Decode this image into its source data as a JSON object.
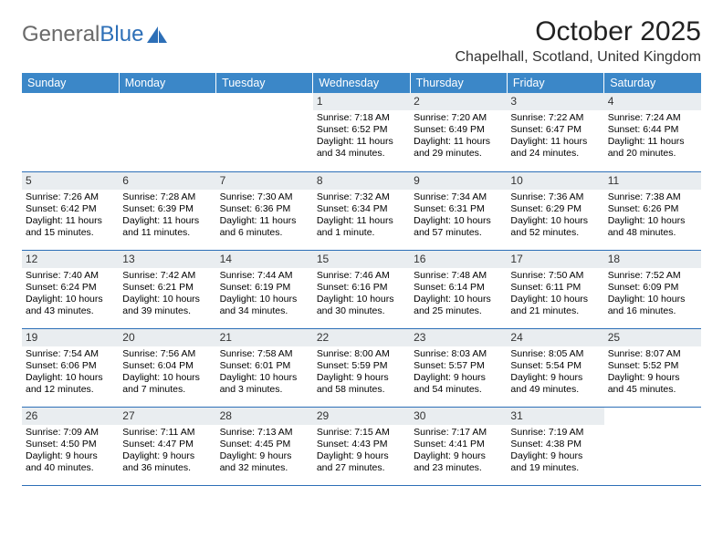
{
  "logo": {
    "part1": "General",
    "part2": "Blue"
  },
  "title": "October 2025",
  "location": "Chapelhall, Scotland, United Kingdom",
  "colors": {
    "header_bg": "#3b87c8",
    "header_text": "#ffffff",
    "daynum_bg": "#e9edf0",
    "rule": "#2d6fb7",
    "logo_gray": "#6a6a6a",
    "logo_blue": "#2d6fb7"
  },
  "typography": {
    "title_fontsize": 30,
    "location_fontsize": 16,
    "dayheader_fontsize": 12.5,
    "cell_fontsize": 10.5
  },
  "day_headers": [
    "Sunday",
    "Monday",
    "Tuesday",
    "Wednesday",
    "Thursday",
    "Friday",
    "Saturday"
  ],
  "weeks": [
    [
      {
        "n": "",
        "sr": "",
        "ss": "",
        "dl": ""
      },
      {
        "n": "",
        "sr": "",
        "ss": "",
        "dl": ""
      },
      {
        "n": "",
        "sr": "",
        "ss": "",
        "dl": ""
      },
      {
        "n": "1",
        "sr": "Sunrise: 7:18 AM",
        "ss": "Sunset: 6:52 PM",
        "dl": "Daylight: 11 hours and 34 minutes."
      },
      {
        "n": "2",
        "sr": "Sunrise: 7:20 AM",
        "ss": "Sunset: 6:49 PM",
        "dl": "Daylight: 11 hours and 29 minutes."
      },
      {
        "n": "3",
        "sr": "Sunrise: 7:22 AM",
        "ss": "Sunset: 6:47 PM",
        "dl": "Daylight: 11 hours and 24 minutes."
      },
      {
        "n": "4",
        "sr": "Sunrise: 7:24 AM",
        "ss": "Sunset: 6:44 PM",
        "dl": "Daylight: 11 hours and 20 minutes."
      }
    ],
    [
      {
        "n": "5",
        "sr": "Sunrise: 7:26 AM",
        "ss": "Sunset: 6:42 PM",
        "dl": "Daylight: 11 hours and 15 minutes."
      },
      {
        "n": "6",
        "sr": "Sunrise: 7:28 AM",
        "ss": "Sunset: 6:39 PM",
        "dl": "Daylight: 11 hours and 11 minutes."
      },
      {
        "n": "7",
        "sr": "Sunrise: 7:30 AM",
        "ss": "Sunset: 6:36 PM",
        "dl": "Daylight: 11 hours and 6 minutes."
      },
      {
        "n": "8",
        "sr": "Sunrise: 7:32 AM",
        "ss": "Sunset: 6:34 PM",
        "dl": "Daylight: 11 hours and 1 minute."
      },
      {
        "n": "9",
        "sr": "Sunrise: 7:34 AM",
        "ss": "Sunset: 6:31 PM",
        "dl": "Daylight: 10 hours and 57 minutes."
      },
      {
        "n": "10",
        "sr": "Sunrise: 7:36 AM",
        "ss": "Sunset: 6:29 PM",
        "dl": "Daylight: 10 hours and 52 minutes."
      },
      {
        "n": "11",
        "sr": "Sunrise: 7:38 AM",
        "ss": "Sunset: 6:26 PM",
        "dl": "Daylight: 10 hours and 48 minutes."
      }
    ],
    [
      {
        "n": "12",
        "sr": "Sunrise: 7:40 AM",
        "ss": "Sunset: 6:24 PM",
        "dl": "Daylight: 10 hours and 43 minutes."
      },
      {
        "n": "13",
        "sr": "Sunrise: 7:42 AM",
        "ss": "Sunset: 6:21 PM",
        "dl": "Daylight: 10 hours and 39 minutes."
      },
      {
        "n": "14",
        "sr": "Sunrise: 7:44 AM",
        "ss": "Sunset: 6:19 PM",
        "dl": "Daylight: 10 hours and 34 minutes."
      },
      {
        "n": "15",
        "sr": "Sunrise: 7:46 AM",
        "ss": "Sunset: 6:16 PM",
        "dl": "Daylight: 10 hours and 30 minutes."
      },
      {
        "n": "16",
        "sr": "Sunrise: 7:48 AM",
        "ss": "Sunset: 6:14 PM",
        "dl": "Daylight: 10 hours and 25 minutes."
      },
      {
        "n": "17",
        "sr": "Sunrise: 7:50 AM",
        "ss": "Sunset: 6:11 PM",
        "dl": "Daylight: 10 hours and 21 minutes."
      },
      {
        "n": "18",
        "sr": "Sunrise: 7:52 AM",
        "ss": "Sunset: 6:09 PM",
        "dl": "Daylight: 10 hours and 16 minutes."
      }
    ],
    [
      {
        "n": "19",
        "sr": "Sunrise: 7:54 AM",
        "ss": "Sunset: 6:06 PM",
        "dl": "Daylight: 10 hours and 12 minutes."
      },
      {
        "n": "20",
        "sr": "Sunrise: 7:56 AM",
        "ss": "Sunset: 6:04 PM",
        "dl": "Daylight: 10 hours and 7 minutes."
      },
      {
        "n": "21",
        "sr": "Sunrise: 7:58 AM",
        "ss": "Sunset: 6:01 PM",
        "dl": "Daylight: 10 hours and 3 minutes."
      },
      {
        "n": "22",
        "sr": "Sunrise: 8:00 AM",
        "ss": "Sunset: 5:59 PM",
        "dl": "Daylight: 9 hours and 58 minutes."
      },
      {
        "n": "23",
        "sr": "Sunrise: 8:03 AM",
        "ss": "Sunset: 5:57 PM",
        "dl": "Daylight: 9 hours and 54 minutes."
      },
      {
        "n": "24",
        "sr": "Sunrise: 8:05 AM",
        "ss": "Sunset: 5:54 PM",
        "dl": "Daylight: 9 hours and 49 minutes."
      },
      {
        "n": "25",
        "sr": "Sunrise: 8:07 AM",
        "ss": "Sunset: 5:52 PM",
        "dl": "Daylight: 9 hours and 45 minutes."
      }
    ],
    [
      {
        "n": "26",
        "sr": "Sunrise: 7:09 AM",
        "ss": "Sunset: 4:50 PM",
        "dl": "Daylight: 9 hours and 40 minutes."
      },
      {
        "n": "27",
        "sr": "Sunrise: 7:11 AM",
        "ss": "Sunset: 4:47 PM",
        "dl": "Daylight: 9 hours and 36 minutes."
      },
      {
        "n": "28",
        "sr": "Sunrise: 7:13 AM",
        "ss": "Sunset: 4:45 PM",
        "dl": "Daylight: 9 hours and 32 minutes."
      },
      {
        "n": "29",
        "sr": "Sunrise: 7:15 AM",
        "ss": "Sunset: 4:43 PM",
        "dl": "Daylight: 9 hours and 27 minutes."
      },
      {
        "n": "30",
        "sr": "Sunrise: 7:17 AM",
        "ss": "Sunset: 4:41 PM",
        "dl": "Daylight: 9 hours and 23 minutes."
      },
      {
        "n": "31",
        "sr": "Sunrise: 7:19 AM",
        "ss": "Sunset: 4:38 PM",
        "dl": "Daylight: 9 hours and 19 minutes."
      },
      {
        "n": "",
        "sr": "",
        "ss": "",
        "dl": ""
      }
    ]
  ]
}
